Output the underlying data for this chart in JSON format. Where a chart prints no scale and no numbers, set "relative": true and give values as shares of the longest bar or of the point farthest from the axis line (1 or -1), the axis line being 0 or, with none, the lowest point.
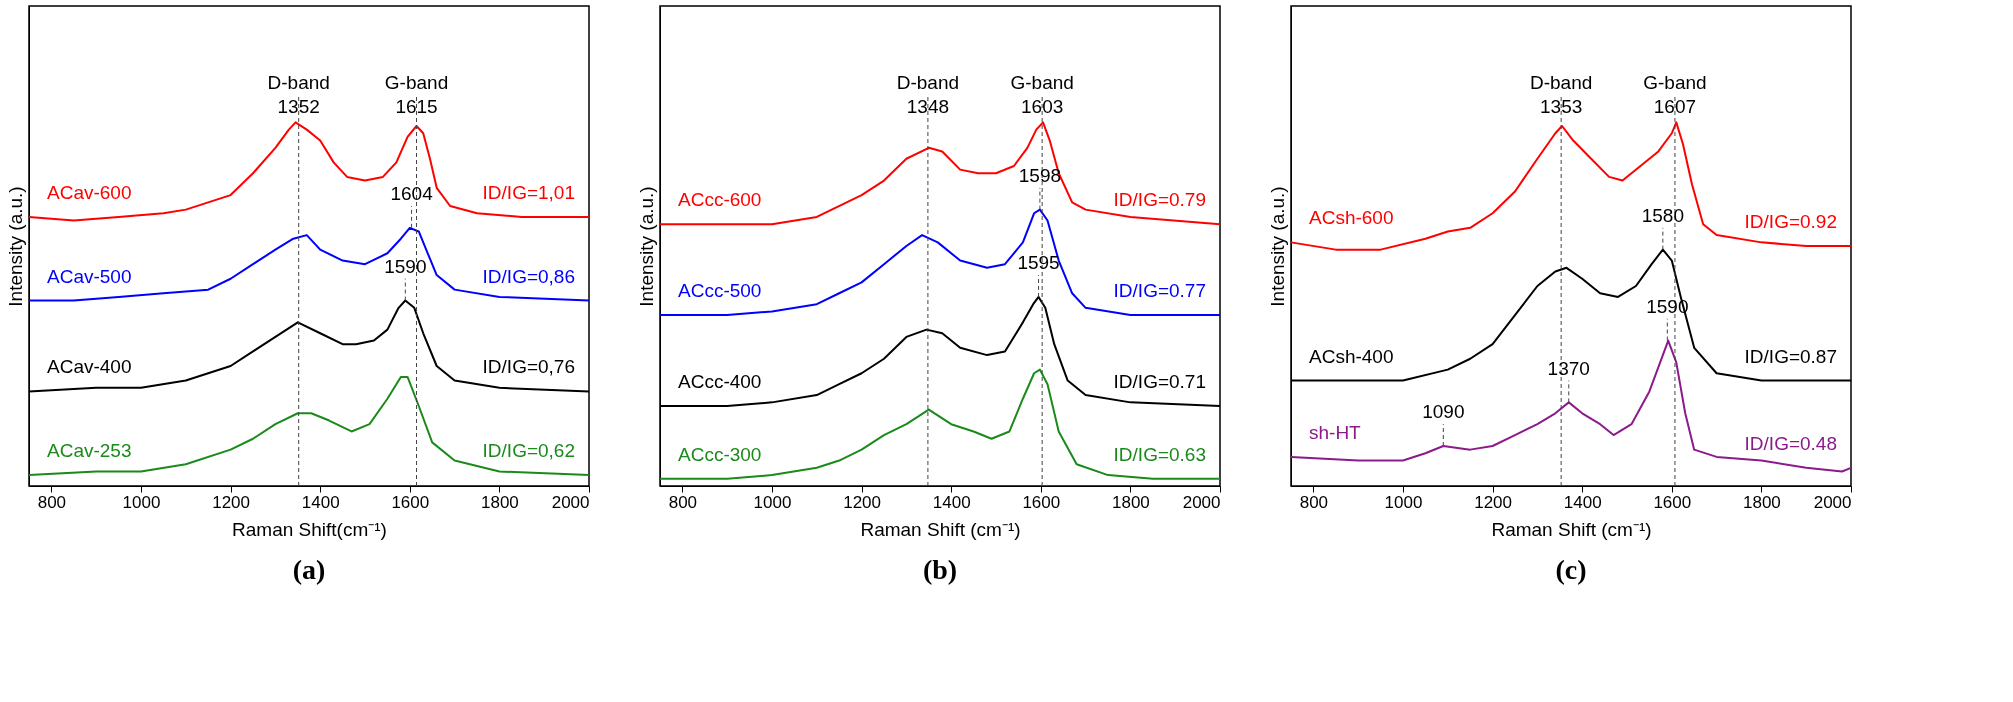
{
  "chart_data": [
    {
      "type": "line",
      "title": "(a)",
      "xlabel": "Raman Shift(cm⁻¹)",
      "ylabel": "Intensity (a.u.)",
      "relative": true,
      "xlim": [
        750,
        2000
      ],
      "xticks": [
        800,
        1000,
        1200,
        1400,
        1600,
        1800,
        2000
      ],
      "series": [
        {
          "name": "ACav-600",
          "color": "#ff0000",
          "x": [
            750,
            850,
            950,
            1050,
            1100,
            1150,
            1200,
            1250,
            1300,
            1330,
            1345,
            1370,
            1400,
            1430,
            1460,
            1500,
            1540,
            1570,
            1595,
            1615,
            1630,
            1645,
            1660,
            1690,
            1750,
            1850,
            2000
          ],
          "values": [
            0.74,
            0.73,
            0.74,
            0.75,
            0.76,
            0.78,
            0.8,
            0.86,
            0.93,
            0.98,
            1.0,
            0.98,
            0.95,
            0.89,
            0.85,
            0.84,
            0.85,
            0.89,
            0.96,
            0.99,
            0.97,
            0.9,
            0.82,
            0.77,
            0.75,
            0.74,
            0.74
          ]
        },
        {
          "name": "ACav-500",
          "color": "#0000ff",
          "x": [
            750,
            850,
            950,
            1050,
            1150,
            1200,
            1250,
            1300,
            1340,
            1370,
            1400,
            1450,
            1500,
            1550,
            1580,
            1600,
            1620,
            1640,
            1660,
            1700,
            1800,
            2000
          ],
          "values": [
            0.51,
            0.51,
            0.52,
            0.53,
            0.54,
            0.57,
            0.61,
            0.65,
            0.68,
            0.69,
            0.65,
            0.62,
            0.61,
            0.64,
            0.68,
            0.71,
            0.7,
            0.64,
            0.58,
            0.54,
            0.52,
            0.51
          ]
        },
        {
          "name": "ACav-400",
          "color": "#000000",
          "x": [
            750,
            900,
            1000,
            1100,
            1200,
            1250,
            1300,
            1350,
            1400,
            1450,
            1480,
            1520,
            1550,
            1575,
            1590,
            1610,
            1630,
            1660,
            1700,
            1800,
            2000
          ],
          "values": [
            0.26,
            0.27,
            0.27,
            0.29,
            0.33,
            0.37,
            0.41,
            0.45,
            0.42,
            0.39,
            0.39,
            0.4,
            0.43,
            0.49,
            0.51,
            0.49,
            0.42,
            0.33,
            0.29,
            0.27,
            0.26
          ]
        },
        {
          "name": "ACav-253",
          "color": "#1a8a1a",
          "x": [
            750,
            900,
            1000,
            1100,
            1200,
            1250,
            1300,
            1350,
            1380,
            1420,
            1470,
            1510,
            1550,
            1580,
            1595,
            1620,
            1650,
            1700,
            1800,
            2000
          ],
          "values": [
            0.03,
            0.04,
            0.04,
            0.06,
            0.1,
            0.13,
            0.17,
            0.2,
            0.2,
            0.18,
            0.15,
            0.17,
            0.24,
            0.3,
            0.3,
            0.22,
            0.12,
            0.07,
            0.04,
            0.03
          ]
        }
      ],
      "ref_lines": [
        {
          "axis": "x",
          "value": 1352,
          "label": "D-band\n1352",
          "line_style": "dashed"
        },
        {
          "axis": "x",
          "value": 1615,
          "label": "G-band\n1615",
          "line_style": "dashed"
        }
      ],
      "annotations": [
        "ID/IG=1,01",
        "ID/IG=0,86",
        "ID/IG=0,76",
        "ID/IG=0,62",
        {
          "text": "1604",
          "x": 1604,
          "y": 0.71
        },
        {
          "text": "1590",
          "x": 1590,
          "y": 0.51
        }
      ]
    },
    {
      "type": "line",
      "title": "(b)",
      "xlabel": "Raman Shift (cm⁻¹)",
      "ylabel": "Intensity (a.u.)",
      "relative": true,
      "xlim": [
        750,
        2000
      ],
      "xticks": [
        800,
        1000,
        1200,
        1400,
        1600,
        1800,
        2000
      ],
      "series": [
        {
          "name": "ACcc-600",
          "color": "#ff0000",
          "x": [
            750,
            900,
            1000,
            1100,
            1200,
            1250,
            1300,
            1350,
            1380,
            1420,
            1460,
            1500,
            1540,
            1570,
            1590,
            1605,
            1620,
            1640,
            1670,
            1700,
            1800,
            2000
          ],
          "values": [
            0.72,
            0.72,
            0.72,
            0.74,
            0.8,
            0.84,
            0.9,
            0.93,
            0.92,
            0.87,
            0.86,
            0.86,
            0.88,
            0.93,
            0.98,
            1.0,
            0.95,
            0.86,
            0.78,
            0.76,
            0.74,
            0.72
          ]
        },
        {
          "name": "ACcc-500",
          "color": "#0000ff",
          "x": [
            750,
            900,
            1000,
            1100,
            1150,
            1200,
            1250,
            1300,
            1335,
            1370,
            1420,
            1480,
            1520,
            1560,
            1585,
            1598,
            1615,
            1640,
            1670,
            1700,
            1800,
            2000
          ],
          "values": [
            0.47,
            0.47,
            0.48,
            0.5,
            0.53,
            0.56,
            0.61,
            0.66,
            0.69,
            0.67,
            0.62,
            0.6,
            0.61,
            0.67,
            0.75,
            0.76,
            0.73,
            0.62,
            0.53,
            0.49,
            0.47,
            0.47
          ]
        },
        {
          "name": "ACcc-400",
          "color": "#000000",
          "x": [
            750,
            900,
            1000,
            1100,
            1150,
            1200,
            1250,
            1300,
            1345,
            1380,
            1420,
            1480,
            1520,
            1560,
            1583,
            1595,
            1610,
            1630,
            1660,
            1700,
            1800,
            2000
          ],
          "values": [
            0.22,
            0.22,
            0.23,
            0.25,
            0.28,
            0.31,
            0.35,
            0.41,
            0.43,
            0.42,
            0.38,
            0.36,
            0.37,
            0.45,
            0.5,
            0.52,
            0.49,
            0.39,
            0.29,
            0.25,
            0.23,
            0.22
          ]
        },
        {
          "name": "ACcc-300",
          "color": "#1a8a1a",
          "x": [
            750,
            900,
            1000,
            1100,
            1150,
            1200,
            1250,
            1300,
            1350,
            1400,
            1450,
            1490,
            1530,
            1560,
            1585,
            1598,
            1615,
            1640,
            1680,
            1750,
            1850,
            2000
          ],
          "values": [
            0.02,
            0.02,
            0.03,
            0.05,
            0.07,
            0.1,
            0.14,
            0.17,
            0.21,
            0.17,
            0.15,
            0.13,
            0.15,
            0.24,
            0.31,
            0.32,
            0.28,
            0.15,
            0.06,
            0.03,
            0.02,
            0.02
          ]
        }
      ],
      "ref_lines": [
        {
          "axis": "x",
          "value": 1348,
          "label": "D-band\n1348",
          "line_style": "dashed"
        },
        {
          "axis": "x",
          "value": 1603,
          "label": "G-band\n1603",
          "line_style": "dashed"
        }
      ],
      "annotations": [
        "ID/IG=0.79",
        "ID/IG=0.77",
        "ID/IG=0.71",
        "ID/IG=0.63",
        {
          "text": "1598",
          "x": 1598,
          "y": 0.76
        },
        {
          "text": "1595",
          "x": 1595,
          "y": 0.52
        }
      ]
    },
    {
      "type": "line",
      "title": "(c)",
      "xlabel": "Raman Shift (cm⁻¹)",
      "ylabel": "Intensity (a.u.)",
      "relative": true,
      "xlim": [
        750,
        2000
      ],
      "xticks": [
        800,
        1000,
        1200,
        1400,
        1600,
        1800,
        2000
      ],
      "series": [
        {
          "name": "ACsh-600",
          "color": "#ff0000",
          "x": [
            750,
            850,
            950,
            1050,
            1100,
            1150,
            1200,
            1250,
            1300,
            1340,
            1355,
            1380,
            1420,
            1460,
            1490,
            1530,
            1570,
            1600,
            1610,
            1625,
            1645,
            1670,
            1700,
            1800,
            1900,
            2000
          ],
          "values": [
            0.67,
            0.65,
            0.65,
            0.68,
            0.7,
            0.71,
            0.75,
            0.81,
            0.9,
            0.97,
            0.99,
            0.95,
            0.9,
            0.85,
            0.84,
            0.88,
            0.92,
            0.97,
            1.0,
            0.94,
            0.83,
            0.72,
            0.69,
            0.67,
            0.66,
            0.66
          ]
        },
        {
          "name": "ACsh-400",
          "color": "#000000",
          "x": [
            750,
            900,
            1000,
            1100,
            1150,
            1200,
            1250,
            1300,
            1340,
            1365,
            1400,
            1440,
            1480,
            1520,
            1555,
            1580,
            1600,
            1620,
            1650,
            1700,
            1800,
            2000
          ],
          "values": [
            0.29,
            0.29,
            0.29,
            0.32,
            0.35,
            0.39,
            0.47,
            0.55,
            0.59,
            0.6,
            0.57,
            0.53,
            0.52,
            0.55,
            0.61,
            0.65,
            0.62,
            0.52,
            0.38,
            0.31,
            0.29,
            0.29
          ]
        },
        {
          "name": "sh-HT",
          "color": "#8b1a8b",
          "x": [
            750,
            900,
            1000,
            1050,
            1090,
            1150,
            1200,
            1250,
            1300,
            1340,
            1370,
            1400,
            1440,
            1470,
            1510,
            1550,
            1580,
            1592,
            1610,
            1630,
            1650,
            1700,
            1800,
            1900,
            1980,
            2000
          ],
          "values": [
            0.08,
            0.07,
            0.07,
            0.09,
            0.11,
            0.1,
            0.11,
            0.14,
            0.17,
            0.2,
            0.23,
            0.2,
            0.17,
            0.14,
            0.17,
            0.26,
            0.36,
            0.4,
            0.34,
            0.2,
            0.1,
            0.08,
            0.07,
            0.05,
            0.04,
            0.05
          ]
        }
      ],
      "ref_lines": [
        {
          "axis": "x",
          "value": 1353,
          "label": "D-band\n1353",
          "line_style": "dashed"
        },
        {
          "axis": "x",
          "value": 1607,
          "label": "G-band\n1607",
          "line_style": "dashed"
        }
      ],
      "annotations": [
        "ID/IG=0.92",
        "ID/IG=0.87",
        "ID/IG=0.48",
        {
          "text": "1580",
          "x": 1580,
          "y": 0.65
        },
        {
          "text": "1590",
          "x": 1590,
          "y": 0.4
        },
        {
          "text": "1370",
          "x": 1370,
          "y": 0.23
        },
        {
          "text": "1090",
          "x": 1090,
          "y": 0.11
        }
      ]
    }
  ]
}
